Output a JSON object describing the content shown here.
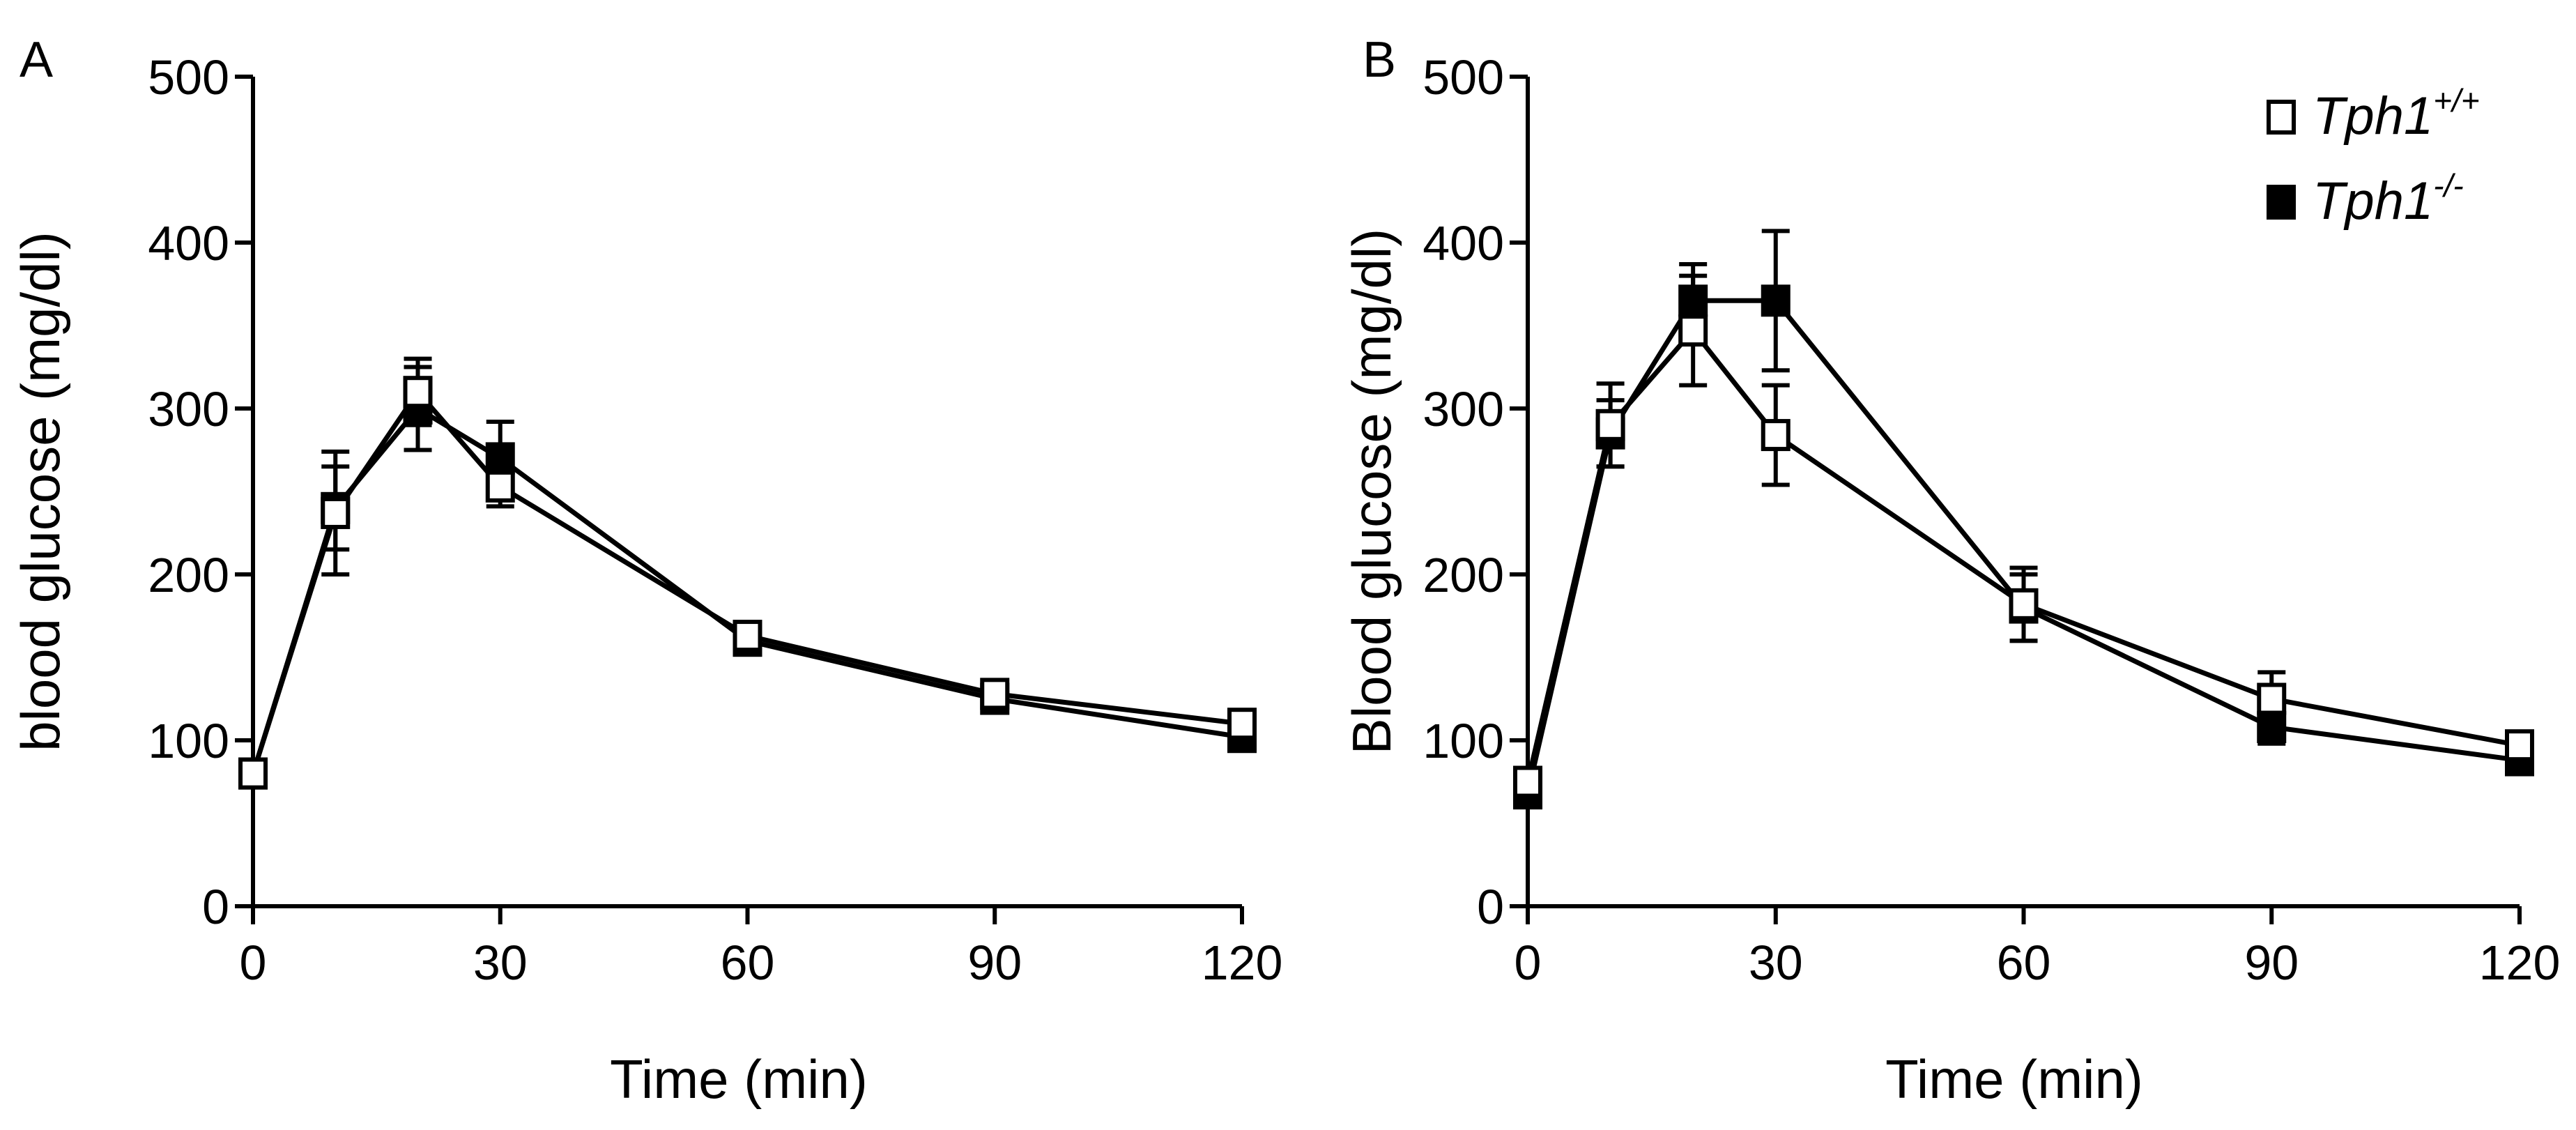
{
  "legend": {
    "wt_label": "Tph1",
    "wt_sup": "+/+",
    "ko_label": "Tph1",
    "ko_sup": "-/-"
  },
  "colors": {
    "axis": "#000000",
    "wt_fill": "#ffffff",
    "ko_fill": "#000000"
  },
  "chart_data": [
    {
      "type": "line",
      "panel": "A",
      "title": "",
      "xlabel": "Time (min)",
      "ylabel": "blood glucose (mg/dl)",
      "xlim": [
        0,
        120
      ],
      "ylim": [
        0,
        500
      ],
      "x_ticks": [
        0,
        30,
        60,
        90,
        120
      ],
      "x_tick_labels": [
        "0",
        "30",
        "60",
        "90",
        "120"
      ],
      "y_ticks": [
        0,
        100,
        200,
        300,
        400,
        500
      ],
      "y_tick_labels": [
        "0",
        "100",
        "200",
        "300",
        "400",
        "500"
      ],
      "x": [
        0,
        10,
        20,
        30,
        60,
        90,
        120
      ],
      "series": [
        {
          "name": "Tph1-/-",
          "marker": "filled-square",
          "values": [
            80,
            240,
            300,
            270,
            160,
            125,
            102
          ],
          "errors": [
            8,
            25,
            25,
            22,
            8,
            8,
            8
          ]
        },
        {
          "name": "Tph1+/+",
          "marker": "open-square",
          "values": [
            80,
            237,
            310,
            253,
            163,
            128,
            110
          ],
          "errors": [
            8,
            37,
            20,
            12,
            8,
            8,
            8
          ]
        }
      ],
      "legend": "none"
    },
    {
      "type": "line",
      "panel": "B",
      "title": "",
      "xlabel": "Time (min)",
      "ylabel": "Blood glucose (mg/dl)",
      "xlim": [
        0,
        120
      ],
      "ylim": [
        0,
        500
      ],
      "x_ticks": [
        0,
        30,
        60,
        90,
        120
      ],
      "x_tick_labels": [
        "0",
        "30",
        "60",
        "90",
        "120"
      ],
      "y_ticks": [
        0,
        100,
        200,
        300,
        400,
        500
      ],
      "y_tick_labels": [
        "0",
        "100",
        "200",
        "300",
        "400",
        "500"
      ],
      "x": [
        0,
        10,
        20,
        30,
        60,
        90,
        120
      ],
      "series": [
        {
          "name": "Tph1-/-",
          "marker": "filled-square",
          "values": [
            68,
            285,
            365,
            365,
            180,
            108,
            88
          ],
          "errors": [
            8,
            20,
            22,
            42,
            20,
            10,
            8
          ]
        },
        {
          "name": "Tph1+/+",
          "marker": "open-square",
          "values": [
            75,
            290,
            347,
            284,
            182,
            125,
            97
          ],
          "errors": [
            8,
            25,
            33,
            30,
            22,
            16,
            8
          ]
        }
      ],
      "legend": "top-right"
    }
  ]
}
